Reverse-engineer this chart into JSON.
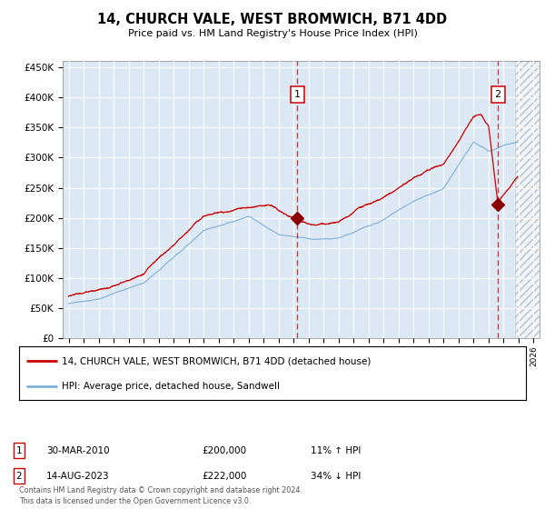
{
  "title": "14, CHURCH VALE, WEST BROMWICH, B71 4DD",
  "subtitle": "Price paid vs. HM Land Registry's House Price Index (HPI)",
  "plot_bg_color": "#dce9f5",
  "red_line_color": "#cc0000",
  "blue_line_color": "#7fb0d8",
  "ylim": [
    0,
    460000
  ],
  "yticks": [
    0,
    50000,
    100000,
    150000,
    200000,
    250000,
    300000,
    350000,
    400000,
    450000
  ],
  "ytick_labels": [
    "£0",
    "£50K",
    "£100K",
    "£150K",
    "£200K",
    "£250K",
    "£300K",
    "£350K",
    "£400K",
    "£450K"
  ],
  "transaction1": {
    "year": 2010.25,
    "price": 200000,
    "label": "1",
    "date": "30-MAR-2010",
    "hpi_pct": "11% ↑ HPI"
  },
  "transaction2": {
    "year": 2023.62,
    "price": 222000,
    "label": "2",
    "date": "14-AUG-2023",
    "hpi_pct": "34% ↓ HPI"
  },
  "legend_line1": "14, CHURCH VALE, WEST BROMWICH, B71 4DD (detached house)",
  "legend_line2": "HPI: Average price, detached house, Sandwell",
  "footnote": "Contains HM Land Registry data © Crown copyright and database right 2024.\nThis data is licensed under the Open Government Licence v3.0.",
  "hatch_start": 2024.75,
  "xlim_start": 1994.6,
  "xlim_end": 2026.4
}
